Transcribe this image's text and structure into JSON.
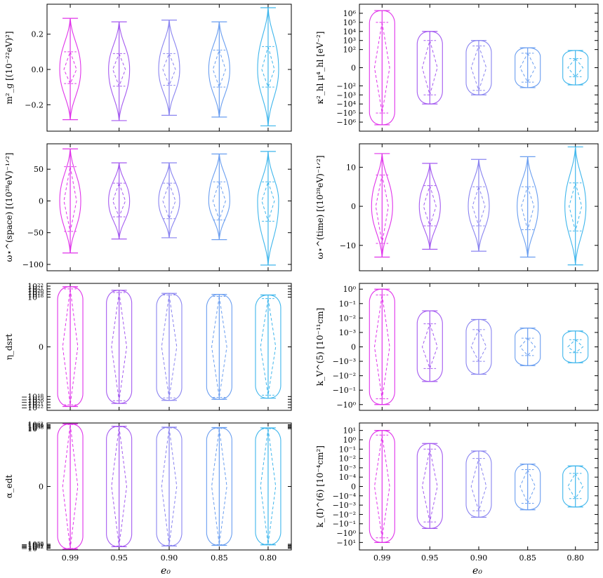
{
  "x_categories": [
    "0.99",
    "0.95",
    "0.90",
    "0.85",
    "0.80"
  ],
  "xlabel": "e₀",
  "series_colors": [
    "#e033ea",
    "#a45af0",
    "#8a84f0",
    "#6a9ef0",
    "#3fb6ec"
  ],
  "chart_data": [
    {
      "type": "violin",
      "ylabel": "m²_g [(10⁻²²eV)²]",
      "yscale": "linear",
      "ylim": [
        -0.35,
        0.37
      ],
      "ticks": [
        {
          "v": 0.2,
          "label": "0.2"
        },
        {
          "v": 0.0,
          "label": "0.0"
        },
        {
          "v": -0.2,
          "label": "−0.2"
        }
      ],
      "violins": [
        {
          "min": -0.285,
          "max": 0.29,
          "q1": -0.08,
          "median": 0.0,
          "q3": 0.1
        },
        {
          "min": -0.29,
          "max": 0.27,
          "q1": -0.095,
          "median": 0.0,
          "q3": 0.09
        },
        {
          "min": -0.26,
          "max": 0.28,
          "q1": -0.09,
          "median": 0.0,
          "q3": 0.09
        },
        {
          "min": -0.27,
          "max": 0.27,
          "q1": -0.1,
          "median": 0.0,
          "q3": 0.11
        },
        {
          "min": -0.32,
          "max": 0.35,
          "q1": -0.1,
          "median": 0.0,
          "q3": 0.13
        }
      ]
    },
    {
      "type": "violin",
      "ylabel": "κ²_hl μ⁴_hl [eV⁻²]",
      "yscale": "symlog",
      "ylim": [
        -7,
        7
      ],
      "ticks": [
        {
          "v": 6,
          "label": "10⁶"
        },
        {
          "v": 5,
          "label": "10⁵"
        },
        {
          "v": 4,
          "label": "10⁴"
        },
        {
          "v": 3,
          "label": "10³"
        },
        {
          "v": 2,
          "label": "10²"
        },
        {
          "v": 0,
          "label": "0"
        },
        {
          "v": -2,
          "label": "−10²"
        },
        {
          "v": -3,
          "label": "−10³"
        },
        {
          "v": -4,
          "label": "−10⁴"
        },
        {
          "v": -5,
          "label": "−10⁵"
        },
        {
          "v": -6,
          "label": "−10⁶"
        }
      ],
      "violins": [
        {
          "min": -6.3,
          "max": 6.3,
          "q1": -5.0,
          "median": 0,
          "q3": 5.0
        },
        {
          "min": -4.0,
          "max": 4.0,
          "q1": -3.0,
          "median": 0,
          "q3": 3.0
        },
        {
          "min": -3.0,
          "max": 3.0,
          "q1": -2.5,
          "median": 0,
          "q3": 2.4
        },
        {
          "min": -2.2,
          "max": 2.2,
          "q1": -1.6,
          "median": 0,
          "q3": 1.6
        },
        {
          "min": -1.9,
          "max": 1.9,
          "q1": -1.0,
          "median": 0,
          "q3": 1.0
        }
      ]
    },
    {
      "type": "violin",
      "ylabel": "ω⋆^(space) [(10²⁸eV)⁻¹ᐟ²]",
      "yscale": "linear",
      "ylim": [
        -110,
        90
      ],
      "ticks": [
        {
          "v": 50,
          "label": "50"
        },
        {
          "v": 0,
          "label": "0"
        },
        {
          "v": -50,
          "label": "−50"
        },
        {
          "v": -100,
          "label": "−100"
        }
      ],
      "violins": [
        {
          "min": -82,
          "max": 82,
          "q1": -48,
          "median": 0,
          "q3": 54
        },
        {
          "min": -60,
          "max": 60,
          "q1": -25,
          "median": 0,
          "q3": 28
        },
        {
          "min": -58,
          "max": 60,
          "q1": -28,
          "median": 0,
          "q3": 28
        },
        {
          "min": -61,
          "max": 74,
          "q1": -30,
          "median": 0,
          "q3": 30
        },
        {
          "min": -101,
          "max": 78,
          "q1": -32,
          "median": 0,
          "q3": 30
        }
      ]
    },
    {
      "type": "violin",
      "ylabel": "ω⋆^(time) [(10²⁸eV)⁻¹ᐟ²]",
      "yscale": "linear",
      "ylim": [
        -16.5,
        16
      ],
      "ticks": [
        {
          "v": 10,
          "label": "10"
        },
        {
          "v": 0,
          "label": "0"
        },
        {
          "v": -10,
          "label": "−10"
        }
      ],
      "violins": [
        {
          "min": -13,
          "max": 13.5,
          "q1": -9.5,
          "median": 0,
          "q3": 8.0
        },
        {
          "min": -11,
          "max": 11,
          "q1": -5.0,
          "median": 0,
          "q3": 5.3
        },
        {
          "min": -11.5,
          "max": 12,
          "q1": -5.0,
          "median": 0,
          "q3": 5.0
        },
        {
          "min": -13,
          "max": 12.7,
          "q1": -6.0,
          "median": 0,
          "q3": 5.0
        },
        {
          "min": -15,
          "max": 15.2,
          "q1": -6.3,
          "median": 0,
          "q3": 6.0
        }
      ]
    },
    {
      "type": "violin",
      "ylabel": "η_dsrt",
      "yscale": "symlog",
      "ylim": [
        -23,
        23
      ],
      "ticks": [
        {
          "v": 22,
          "label": "10²²"
        },
        {
          "v": 21,
          "label": "10²¹"
        },
        {
          "v": 20,
          "label": "10²⁰"
        },
        {
          "v": 19,
          "label": "10¹⁹"
        },
        {
          "v": 18,
          "label": "10¹⁸"
        },
        {
          "v": 0,
          "label": "0"
        },
        {
          "v": -18,
          "label": "−10¹⁸"
        },
        {
          "v": -19,
          "label": "−10¹⁹"
        },
        {
          "v": -20,
          "label": "−10²⁰"
        },
        {
          "v": -21,
          "label": "−10²¹"
        },
        {
          "v": -22,
          "label": "−10²²"
        }
      ],
      "violins": [
        {
          "min": -21.6,
          "max": 21.8,
          "q1": -21.0,
          "median": 0,
          "q3": 21.0
        },
        {
          "min": -20.5,
          "max": 20.5,
          "q1": -19.5,
          "median": 0,
          "q3": 19.7
        },
        {
          "min": -19.4,
          "max": 19.4,
          "q1": -18.5,
          "median": 0,
          "q3": 18.8
        },
        {
          "min": -19.0,
          "max": 19.0,
          "q1": -18.3,
          "median": 0,
          "q3": 18.3
        },
        {
          "min": -18.6,
          "max": 18.8,
          "q1": -17.5,
          "median": 0,
          "q3": 17.5
        }
      ]
    },
    {
      "type": "violin",
      "ylabel": "k_V^(5) [10⁻¹¹cm]",
      "yscale": "symlog",
      "ylim": [
        -4.4,
        4.4
      ],
      "ticks": [
        {
          "v": 4,
          "label": "10⁰"
        },
        {
          "v": 3,
          "label": "10⁻¹"
        },
        {
          "v": 2,
          "label": "10⁻²"
        },
        {
          "v": 1,
          "label": "10⁻³"
        },
        {
          "v": 0,
          "label": "0"
        },
        {
          "v": -1,
          "label": "−10⁻³"
        },
        {
          "v": -2,
          "label": "−10⁻²"
        },
        {
          "v": -3,
          "label": "−10⁻¹"
        },
        {
          "v": -4,
          "label": "−10⁰"
        }
      ],
      "violins": [
        {
          "min": -4.0,
          "max": 4.0,
          "q1": -3.6,
          "median": 0,
          "q3": 3.6
        },
        {
          "min": -2.4,
          "max": 2.5,
          "q1": -1.5,
          "median": 0,
          "q3": 1.6
        },
        {
          "min": -1.9,
          "max": 1.9,
          "q1": -1.0,
          "median": 0,
          "q3": 1.2
        },
        {
          "min": -1.3,
          "max": 1.3,
          "q1": -0.6,
          "median": 0,
          "q3": 0.6
        },
        {
          "min": -1.1,
          "max": 1.1,
          "q1": -0.4,
          "median": 0,
          "q3": 0.5
        }
      ]
    },
    {
      "type": "violin",
      "ylabel": "α_edt",
      "yscale": "symlog",
      "ylim": [
        -63.7,
        63.7
      ],
      "ticks": [
        {
          "v": 62,
          "label": "10⁶²"
        },
        {
          "v": 61,
          "label": "10⁶¹"
        },
        {
          "v": 60,
          "label": "10⁶⁰"
        },
        {
          "v": 59,
          "label": "10⁵⁹"
        },
        {
          "v": 58,
          "label": "10⁵⁸"
        },
        {
          "v": 0,
          "label": "0"
        },
        {
          "v": -58,
          "label": "−10⁵⁸"
        },
        {
          "v": -59,
          "label": "−10⁵⁹"
        },
        {
          "v": -60,
          "label": "−10⁶⁰"
        },
        {
          "v": -61,
          "label": "−10⁶¹"
        },
        {
          "v": -62,
          "label": "−10⁶²"
        }
      ],
      "violins": [
        {
          "min": -62.8,
          "max": 62.8,
          "q1": -62.2,
          "median": 0,
          "q3": 62.1
        },
        {
          "min": -60.5,
          "max": 60.4,
          "q1": -59.7,
          "median": 0,
          "q3": 59.9
        },
        {
          "min": -59.8,
          "max": 59.5,
          "q1": -59.0,
          "median": 0,
          "q3": 58.8
        },
        {
          "min": -59.1,
          "max": 59.1,
          "q1": -58.3,
          "median": 0,
          "q3": 58.2
        },
        {
          "min": -58.6,
          "max": 58.8,
          "q1": -58.0,
          "median": 0,
          "q3": 58.0
        }
      ]
    },
    {
      "type": "violin",
      "ylabel": "k_(I)^(6) [10⁻⁴cm²]",
      "yscale": "symlog",
      "ylim": [
        -6.8,
        6.8
      ],
      "ticks": [
        {
          "v": 6,
          "label": "10¹"
        },
        {
          "v": 5,
          "label": "10⁰"
        },
        {
          "v": 4,
          "label": "10⁻¹"
        },
        {
          "v": 3,
          "label": "10⁻²"
        },
        {
          "v": 2,
          "label": "10⁻³"
        },
        {
          "v": 1,
          "label": "10⁻⁴"
        },
        {
          "v": 0,
          "label": "0"
        },
        {
          "v": -1,
          "label": "−10⁻⁴"
        },
        {
          "v": -2,
          "label": "−10⁻³"
        },
        {
          "v": -3,
          "label": "−10⁻²"
        },
        {
          "v": -4,
          "label": "−10⁻¹"
        },
        {
          "v": -5,
          "label": "−10⁰"
        },
        {
          "v": -6,
          "label": "−10¹"
        }
      ],
      "violins": [
        {
          "min": -6.0,
          "max": 6.0,
          "q1": -5.5,
          "median": 0,
          "q3": 5.5
        },
        {
          "min": -4.5,
          "max": 4.6,
          "q1": -3.8,
          "median": 0,
          "q3": 4.0
        },
        {
          "min": -3.3,
          "max": 3.8,
          "q1": -2.6,
          "median": 0,
          "q3": 3.0
        },
        {
          "min": -2.5,
          "max": 2.4,
          "q1": -1.8,
          "median": 0,
          "q3": 1.8
        },
        {
          "min": -2.2,
          "max": 2.2,
          "q1": -1.3,
          "median": 0,
          "q3": 1.4
        }
      ]
    }
  ]
}
